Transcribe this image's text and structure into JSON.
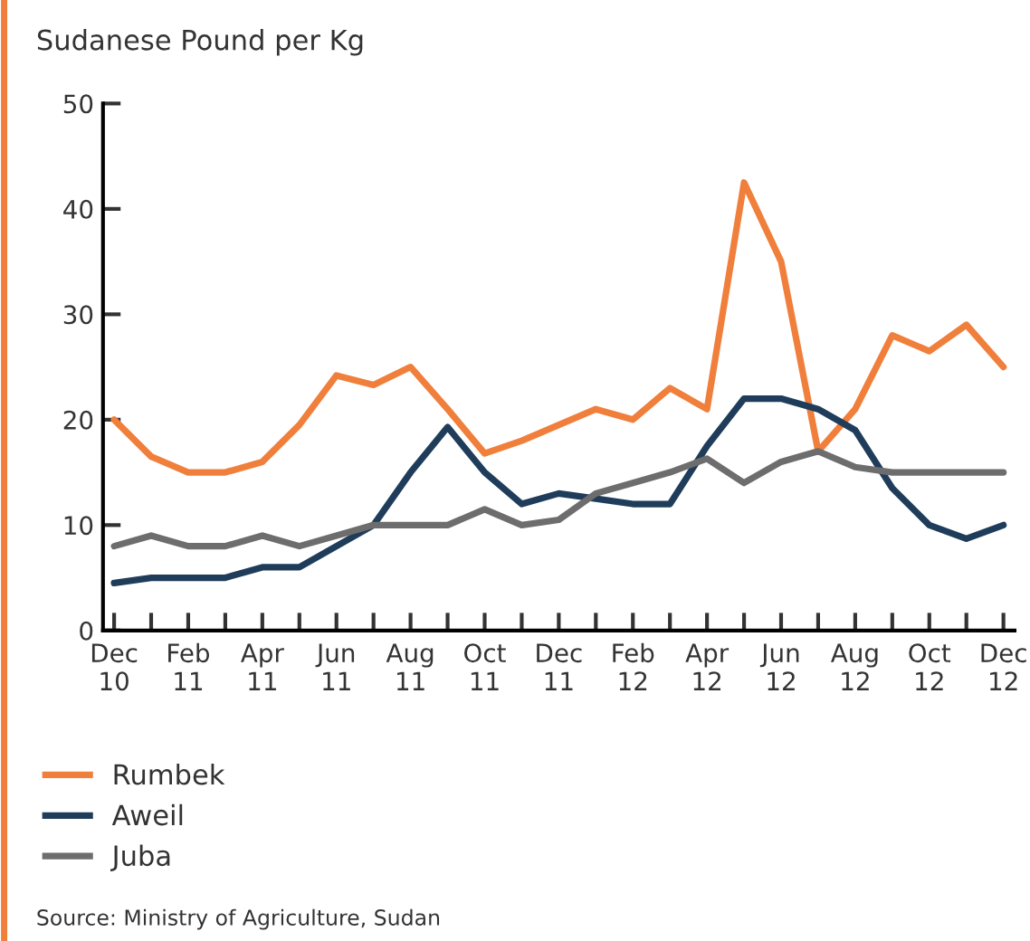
{
  "chart_data": {
    "type": "line",
    "title": "Sudanese Pound per Kg",
    "categories": [
      "Dec\n10",
      null,
      "Feb\n11",
      null,
      "Apr\n11",
      null,
      "Jun\n11",
      null,
      "Aug\n11",
      null,
      "Oct\n11",
      null,
      "Dec\n11",
      null,
      "Feb\n12",
      null,
      "Apr\n12",
      null,
      "Jun\n12",
      null,
      "Aug\n12",
      null,
      "Oct\n12",
      null,
      "Dec\n12"
    ],
    "series": [
      {
        "name": "Rumbek",
        "color": "#f07f3c",
        "values": [
          20,
          16.5,
          15,
          15,
          16,
          19.5,
          24.2,
          23.3,
          25,
          21,
          16.8,
          18,
          19.5,
          21,
          20,
          23,
          21,
          42.5,
          35,
          17,
          21,
          28,
          26.5,
          29,
          25
        ]
      },
      {
        "name": "Aweil",
        "color": "#1f3d5a",
        "values": [
          4.5,
          5,
          5,
          5,
          6,
          6,
          8,
          10,
          15,
          19.3,
          15,
          12,
          13,
          12.5,
          12,
          12,
          17.5,
          22,
          22,
          21,
          19,
          13.5,
          10,
          8.7,
          10
        ]
      },
      {
        "name": "Juba",
        "color": "#6d6d6d",
        "values": [
          8,
          9,
          8,
          8,
          9,
          8,
          9,
          10,
          10,
          10,
          11.5,
          10,
          10.5,
          13,
          14,
          15,
          16.3,
          14,
          16,
          17,
          15.5,
          15,
          15,
          15,
          15
        ]
      }
    ],
    "ylim": [
      0,
      50
    ],
    "yticks": [
      0,
      10,
      20,
      30,
      40,
      50
    ],
    "grid": false,
    "legend": "bottom",
    "marker": "none",
    "line_style": "solid",
    "annotations": [
      "Source: Ministry of Agriculture, Sudan"
    ]
  }
}
